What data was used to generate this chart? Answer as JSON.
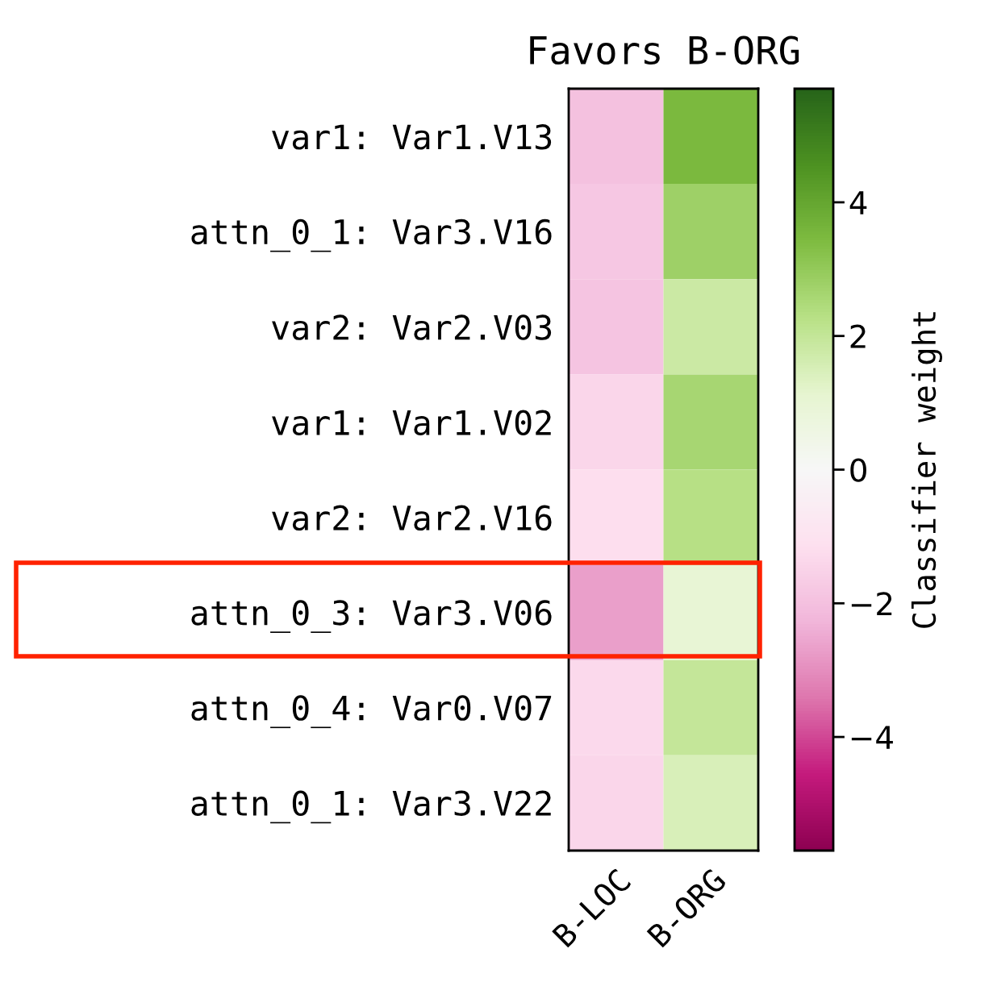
{
  "chart_data": {
    "type": "heatmap",
    "title": "Favors B-ORG",
    "clabel": "Classifier weight",
    "categories": [
      "B-LOC",
      "B-ORG"
    ],
    "y_categories": [
      "var1: Var1.V13",
      "attn_0_1: Var3.V16",
      "var2: Var2.V03",
      "var1: Var1.V02",
      "var2: Var2.V16",
      "attn_0_3: Var3.V06",
      "attn_0_4: Var0.V07",
      "attn_0_1: Var3.V22"
    ],
    "cells": [
      [
        -2.0,
        3.5
      ],
      [
        -1.8,
        2.8
      ],
      [
        -1.9,
        1.8
      ],
      [
        -1.4,
        2.6
      ],
      [
        -1.2,
        2.3
      ],
      [
        -2.7,
        1.0
      ],
      [
        -1.3,
        2.0
      ],
      [
        -1.4,
        1.5
      ]
    ],
    "clim": [
      -5.7,
      5.7
    ],
    "cticks": [
      -4,
      -2,
      0,
      2,
      4
    ]
  }
}
